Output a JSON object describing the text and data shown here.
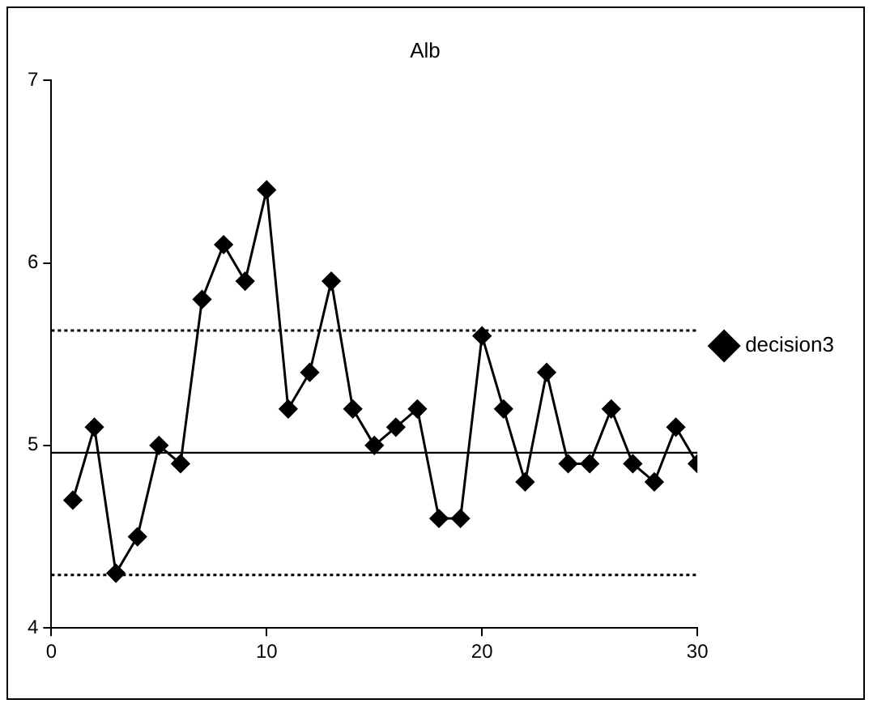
{
  "chart_data": {
    "type": "line",
    "title": "Alb",
    "x": [
      1,
      2,
      3,
      4,
      5,
      6,
      7,
      8,
      9,
      10,
      11,
      12,
      13,
      14,
      15,
      16,
      17,
      18,
      19,
      20,
      21,
      22,
      23,
      24,
      25,
      26,
      27,
      28,
      29,
      30
    ],
    "series": [
      {
        "name": "decision3",
        "color": "#000000",
        "values": [
          4.7,
          5.1,
          4.3,
          4.5,
          5.0,
          4.9,
          5.8,
          6.1,
          5.9,
          6.4,
          5.2,
          5.4,
          5.9,
          5.2,
          5.0,
          5.1,
          5.2,
          4.6,
          4.6,
          5.6,
          5.2,
          4.8,
          5.4,
          4.9,
          4.9,
          5.2,
          4.9,
          4.8,
          5.1,
          4.9
        ]
      }
    ],
    "xlim": [
      0,
      30
    ],
    "xticks": [
      0,
      10,
      20,
      30
    ],
    "ylim": [
      4,
      7
    ],
    "yticks": [
      4,
      5,
      6,
      7
    ],
    "ref_lines": [
      {
        "axis": "y",
        "value": 4.96,
        "color": "#000000",
        "line_style": "solid"
      },
      {
        "axis": "y",
        "value": 5.63,
        "color": "#000000",
        "line_style": "dotted"
      },
      {
        "axis": "y",
        "value": 4.29,
        "color": "#000000",
        "line_style": "dotted"
      }
    ],
    "marker": "diamond",
    "grid": false,
    "legend": "right"
  }
}
